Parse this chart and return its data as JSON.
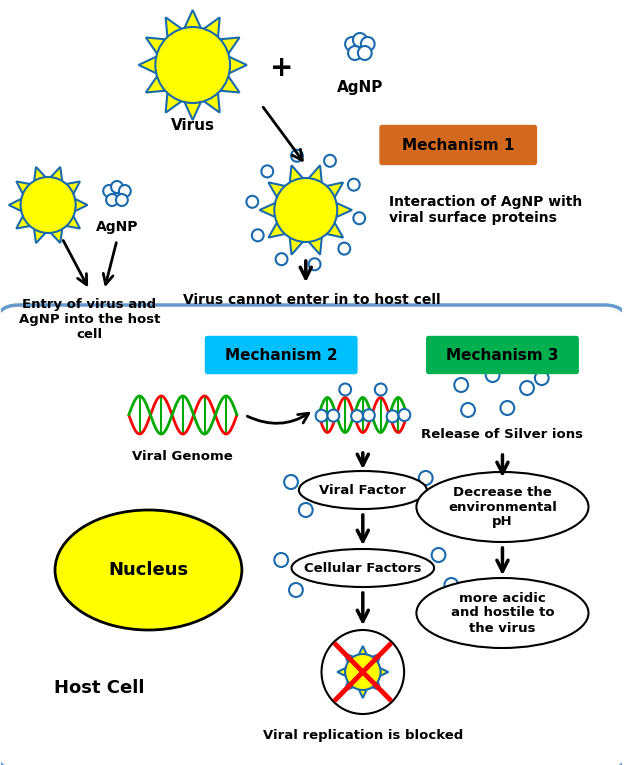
{
  "bg_color": "#ffffff",
  "sun_color": "#ffff00",
  "sun_edge": "#1a6aad",
  "agnp_color": "#1a6aad",
  "nucleus_color": "#ffff00",
  "dna_red": "#ff0000",
  "dna_green": "#00aa00",
  "mech1_color": "#d2691e",
  "mech2_color": "#00bfff",
  "mech3_color": "#00b050",
  "cell_edge_color": "#6699cc",
  "labels": {
    "virus": "Virus",
    "agnp_top": "AgNP",
    "agnp_left": "AgNP",
    "mech1": "Mechanism 1",
    "mech2": "Mechanism 2",
    "mech3": "Mechanism 3",
    "mech1_text": "Interaction of AgNP with\nviral surface proteins",
    "entry_text": "Entry of virus and\nAgNP into the host\ncell",
    "cannot_enter": "Virus cannot enter in to host cell",
    "viral_genome": "Viral Genome",
    "viral_factor": "Viral Factor",
    "cellular_factors": "Cellular Factors",
    "viral_replication": "Viral replication is blocked",
    "nucleus": "Nucleus",
    "host_cell": "Host Cell",
    "release_silver": "Release of Silver ions",
    "decrease_ph": "Decrease the\nenvironmental\npH",
    "more_acidic": "more acidic\nand hostile to\nthe virus"
  }
}
